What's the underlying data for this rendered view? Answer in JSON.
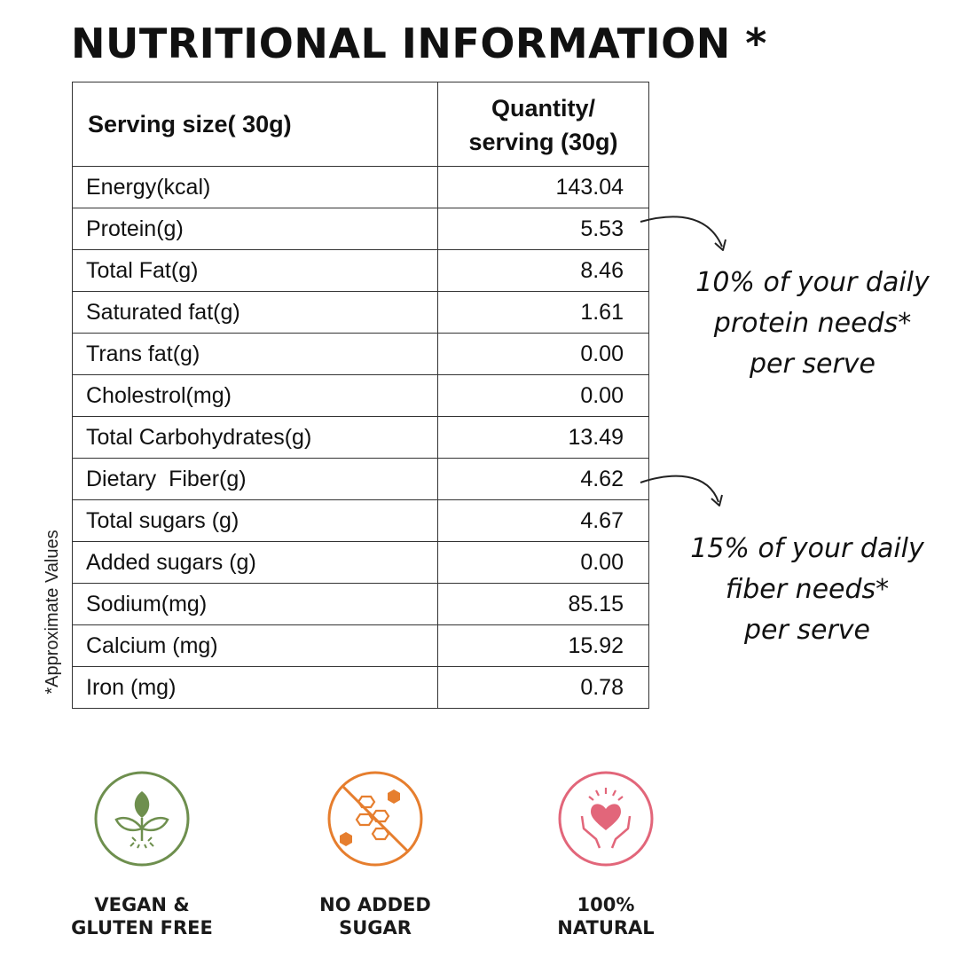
{
  "title": "NUTRITIONAL INFORMATION *",
  "side_note": "*Approximate Values",
  "table": {
    "header_left": "Serving size( 30g)",
    "header_right_line1": "Quantity/",
    "header_right_line2": "serving (30g)",
    "rows": [
      {
        "name": "Energy(kcal)",
        "value": "143.04"
      },
      {
        "name": "Protein(g)",
        "value": "5.53"
      },
      {
        "name": "Total Fat(g)",
        "value": "8.46"
      },
      {
        "name": "Saturated fat(g)",
        "value": "1.61"
      },
      {
        "name": "Trans fat(g)",
        "value": "0.00"
      },
      {
        "name": "Cholestrol(mg)",
        "value": "0.00"
      },
      {
        "name": "Total Carbohydrates(g)",
        "value": "13.49"
      },
      {
        "name": "Dietary  Fiber(g)",
        "value": "4.62"
      },
      {
        "name": "Total sugars (g)",
        "value": "4.67"
      },
      {
        "name": "Added sugars (g)",
        "value": "0.00"
      },
      {
        "name": "Sodium(mg)",
        "value": "85.15"
      },
      {
        "name": "Calcium (mg)",
        "value": "15.92"
      },
      {
        "name": "Iron (mg)",
        "value": "0.78"
      }
    ]
  },
  "callouts": {
    "protein": {
      "line1": "10% of your daily",
      "line2": "protein needs*",
      "line3": "per serve"
    },
    "fiber": {
      "line1": "15% of your daily",
      "line2": "fiber needs*",
      "line3": "per serve"
    }
  },
  "badges": {
    "vegan": {
      "line1": "VEGAN &",
      "line2": "GLUTEN FREE",
      "icon": "sprout-icon",
      "color": "#6e8f4e"
    },
    "sugar": {
      "line1": "NO ADDED",
      "line2": "SUGAR",
      "icon": "no-sugar-icon",
      "color": "#e67e2e"
    },
    "natural": {
      "line1": "100%",
      "line2": "NATURAL",
      "icon": "heart-hands-icon",
      "color": "#e2667a"
    }
  }
}
